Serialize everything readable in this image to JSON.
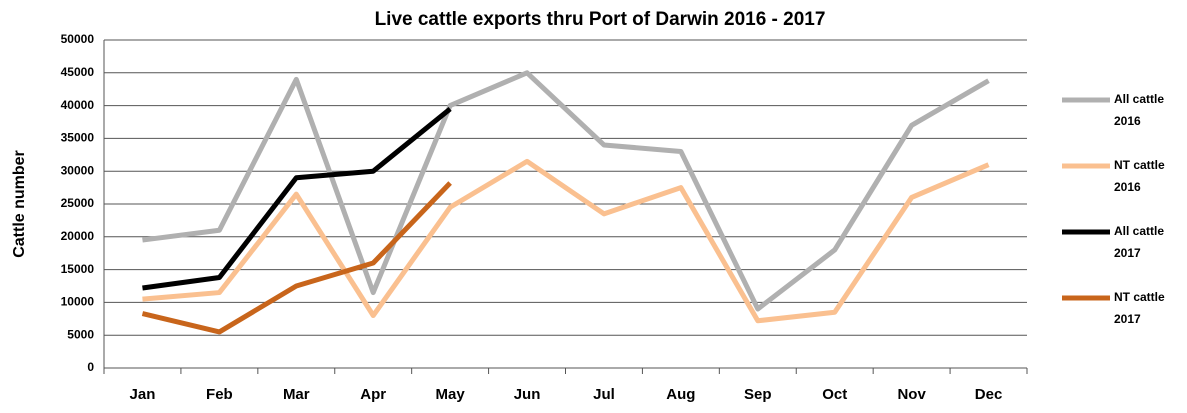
{
  "chart_data": {
    "type": "line",
    "title": "Live cattle exports thru Port of Darwin 2016 - 2017",
    "y_label": "Cattle number",
    "categories": [
      "Jan",
      "Feb",
      "Mar",
      "Apr",
      "May",
      "Jun",
      "Jul",
      "Aug",
      "Sep",
      "Oct",
      "Nov",
      "Dec"
    ],
    "series": [
      {
        "name": "All cattle 2016",
        "color": "#b0b0b0",
        "values": [
          19500,
          21000,
          44000,
          11500,
          40000,
          45000,
          34000,
          33000,
          9000,
          18000,
          37000,
          43800
        ]
      },
      {
        "name": "NT cattle 2016",
        "color": "#fac090",
        "values": [
          10500,
          11500,
          26500,
          8000,
          24500,
          31500,
          23500,
          27500,
          7200,
          8500,
          26000,
          31000
        ]
      },
      {
        "name": "All cattle 2017",
        "color": "#000000",
        "values": [
          12200,
          13800,
          29000,
          30000,
          39500,
          null,
          null,
          null,
          null,
          null,
          null,
          null
        ]
      },
      {
        "name": "NT cattle 2017",
        "color": "#c8651b",
        "values": [
          8300,
          5500,
          12500,
          16000,
          28200,
          null,
          null,
          null,
          null,
          null,
          null,
          null
        ]
      }
    ],
    "ylim": [
      0,
      50000
    ],
    "yticks": [
      0,
      5000,
      10000,
      15000,
      20000,
      25000,
      30000,
      35000,
      40000,
      45000,
      50000
    ],
    "grid": true,
    "legend": "right"
  }
}
